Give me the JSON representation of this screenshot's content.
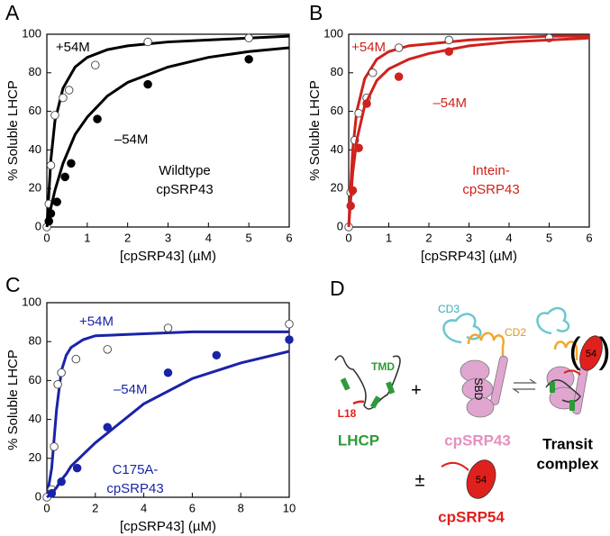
{
  "chart_data": [
    {
      "type": "scatter",
      "panel": "A",
      "xlabel": "[cpSRP43] (µM)",
      "ylabel": "% Soluble LHCP",
      "xlim": [
        0,
        6
      ],
      "xticks": [
        0,
        1,
        2,
        3,
        4,
        5,
        6
      ],
      "ylim": [
        0,
        100
      ],
      "yticks": [
        0,
        20,
        40,
        60,
        80,
        100
      ],
      "annotation": [
        "Wildtype",
        "cpSRP43"
      ],
      "annotation_color": "#000000",
      "series": [
        {
          "name": "+54M",
          "color": "#000000",
          "marker": "open",
          "x": [
            0,
            0.05,
            0.1,
            0.2,
            0.4,
            0.55,
            1.2,
            2.5,
            5
          ],
          "values": [
            0,
            12,
            32,
            58,
            67,
            71,
            84,
            96,
            98
          ],
          "fit_x": [
            0,
            0.1,
            0.2,
            0.4,
            0.7,
            1,
            1.5,
            2,
            3,
            4,
            5,
            6
          ],
          "fit_values": [
            0,
            35,
            55,
            72,
            83,
            88,
            92,
            94,
            96,
            97,
            98,
            99
          ]
        },
        {
          "name": "–54M",
          "color": "#000000",
          "marker": "filled",
          "x": [
            0.05,
            0.1,
            0.25,
            0.45,
            0.6,
            1.25,
            2.5,
            5
          ],
          "values": [
            3,
            7,
            13,
            26,
            33,
            56,
            74,
            87
          ],
          "fit_x": [
            0,
            0.1,
            0.2,
            0.4,
            0.7,
            1,
            1.5,
            2,
            3,
            4,
            5,
            6
          ],
          "fit_values": [
            0,
            10,
            19,
            33,
            48,
            57,
            68,
            75,
            83,
            88,
            91,
            93
          ]
        }
      ]
    },
    {
      "type": "scatter",
      "panel": "B",
      "xlabel": "[cpSRP43] (µM)",
      "ylabel": "% Soluble LHCP",
      "xlim": [
        0,
        6
      ],
      "xticks": [
        0,
        1,
        2,
        3,
        4,
        5,
        6
      ],
      "ylim": [
        0,
        100
      ],
      "yticks": [
        0,
        20,
        40,
        60,
        80,
        100
      ],
      "annotation": [
        "Intein-",
        "cpSRP43"
      ],
      "annotation_color": "#d0211c",
      "series": [
        {
          "name": "+54M",
          "color": "#d0211c",
          "marker": "open",
          "x": [
            0,
            0.05,
            0.15,
            0.25,
            0.45,
            0.6,
            1.25,
            2.5,
            5
          ],
          "values": [
            0,
            18,
            45,
            59,
            67,
            80,
            93,
            97,
            98
          ],
          "fit_x": [
            0,
            0.1,
            0.2,
            0.4,
            0.7,
            1,
            1.5,
            2,
            3,
            4,
            5,
            6
          ],
          "fit_values": [
            0,
            40,
            60,
            77,
            87,
            91,
            94,
            95,
            97,
            98,
            99,
            99
          ]
        },
        {
          "name": "–54M",
          "color": "#d0211c",
          "marker": "filled",
          "x": [
            0.05,
            0.1,
            0.25,
            0.45,
            1.25,
            2.5
          ],
          "values": [
            11,
            19,
            41,
            64,
            78,
            91
          ],
          "fit_x": [
            0,
            0.1,
            0.2,
            0.4,
            0.7,
            1,
            1.5,
            2,
            3,
            4,
            5,
            6
          ],
          "fit_values": [
            0,
            28,
            45,
            63,
            76,
            82,
            87,
            90,
            94,
            96,
            97,
            98
          ]
        }
      ]
    },
    {
      "type": "scatter",
      "panel": "C",
      "xlabel": "[cpSRP43] (µM)",
      "ylabel": "% Soluble LHCP",
      "xlim": [
        0,
        10
      ],
      "xticks": [
        0,
        2,
        4,
        6,
        8,
        10
      ],
      "ylim": [
        0,
        100
      ],
      "yticks": [
        0,
        20,
        40,
        60,
        80,
        100
      ],
      "annotation": [
        "C175A-",
        "cpSRP43"
      ],
      "annotation_color": "#1a23a8",
      "series": [
        {
          "name": "+54M",
          "color": "#1a23a8",
          "marker": "open",
          "x": [
            0,
            0.2,
            0.3,
            0.45,
            0.6,
            1.2,
            2.5,
            5,
            10
          ],
          "values": [
            0,
            4,
            26,
            58,
            64,
            71,
            76,
            87,
            89
          ],
          "fit_x": [
            0,
            0.2,
            0.4,
            0.6,
            0.8,
            1,
            1.5,
            2,
            4,
            6,
            8,
            10
          ],
          "fit_values": [
            0,
            15,
            45,
            65,
            73,
            77,
            81,
            83,
            84,
            85,
            85,
            85
          ]
        },
        {
          "name": "–54M",
          "color": "#1a23a8",
          "marker": "filled",
          "x": [
            0.2,
            0.6,
            1.25,
            2.5,
            5,
            7,
            10
          ],
          "values": [
            2,
            8,
            15,
            36,
            64,
            73,
            81
          ],
          "fit_x": [
            0,
            0.2,
            0.4,
            0.6,
            0.8,
            1,
            1.5,
            2,
            4,
            6,
            8,
            10
          ],
          "fit_values": [
            0,
            2,
            5,
            9,
            12,
            16,
            22,
            28,
            48,
            61,
            69,
            75
          ]
        }
      ]
    }
  ],
  "diagram": {
    "panel": "D",
    "tmd": "TMD",
    "l18": "L18",
    "lhcp": "LHCP",
    "plus": "+",
    "cd3": "CD3",
    "cd2": "CD2",
    "sbd": "SBD",
    "cpsrp43": "cpSRP43",
    "pm": "±",
    "m54a": "54",
    "cpsrp54": "cpSRP54",
    "m54b": "54",
    "open_paren": "(",
    "close_paren": ")",
    "transit": "Transit",
    "complex": "complex"
  }
}
